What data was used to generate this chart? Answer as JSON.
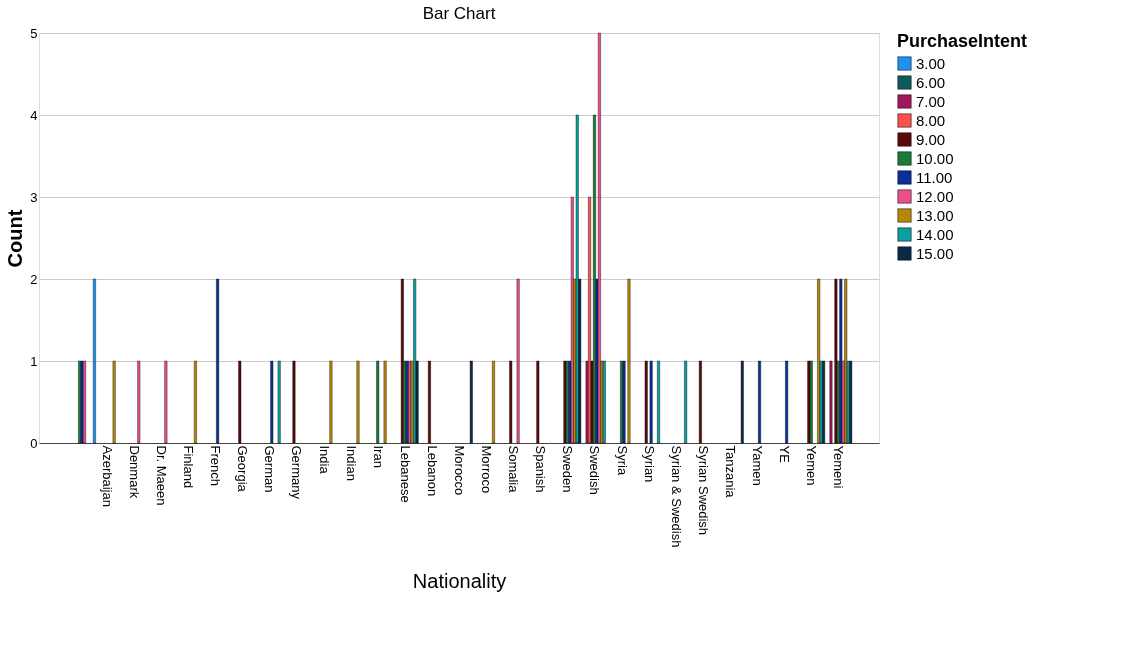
{
  "chart_data": {
    "type": "bar",
    "title": "Bar Chart",
    "xlabel": "Nationality",
    "ylabel": "Count",
    "legend_title": "PurchaseIntent",
    "categories": [
      null,
      "Azerbaijan",
      "Denmark",
      "Dr. Maeen",
      "Finland",
      "French",
      "Georgia",
      "German",
      "Germany",
      "India",
      "Indian",
      "Iran",
      "Lebanese",
      "Lebanon",
      "Morocco",
      "Morroco",
      "Somalia",
      "Spanish",
      "Sweden",
      "Swedish",
      "Syria",
      "Syrian",
      "Syrian & Swedish",
      "Syrian Swedish",
      "Tanzania",
      "Yamen",
      "YE",
      "Yemen",
      "Yemeni"
    ],
    "series": [
      {
        "name": "3.00",
        "color": "#1f8ff2",
        "values": [
          null,
          2,
          null,
          null,
          null,
          null,
          null,
          null,
          null,
          null,
          null,
          null,
          null,
          null,
          null,
          null,
          null,
          null,
          null,
          null,
          null,
          null,
          null,
          null,
          null,
          null,
          null,
          null,
          null
        ]
      },
      {
        "name": "6.00",
        "color": "#0f5a5a",
        "values": [
          null,
          null,
          null,
          null,
          null,
          null,
          null,
          null,
          null,
          null,
          null,
          null,
          null,
          null,
          null,
          null,
          null,
          null,
          null,
          null,
          null,
          null,
          null,
          null,
          null,
          null,
          null,
          null,
          null
        ]
      },
      {
        "name": "7.00",
        "color": "#a1175e",
        "values": [
          null,
          null,
          null,
          null,
          null,
          null,
          null,
          null,
          null,
          null,
          null,
          null,
          null,
          null,
          null,
          null,
          null,
          null,
          null,
          1,
          null,
          null,
          null,
          null,
          null,
          null,
          null,
          null,
          1
        ]
      },
      {
        "name": "8.00",
        "color": "#f94f4f",
        "values": [
          null,
          null,
          null,
          null,
          null,
          null,
          null,
          null,
          null,
          null,
          null,
          null,
          null,
          null,
          null,
          null,
          null,
          null,
          null,
          3,
          null,
          null,
          null,
          null,
          null,
          null,
          null,
          null,
          null
        ]
      },
      {
        "name": "9.00",
        "color": "#5a0a0a",
        "values": [
          null,
          null,
          null,
          null,
          null,
          null,
          1,
          null,
          1,
          null,
          null,
          null,
          2,
          1,
          null,
          null,
          1,
          1,
          1,
          1,
          null,
          1,
          null,
          1,
          null,
          null,
          null,
          1,
          2
        ]
      },
      {
        "name": "10.00",
        "color": "#1a7a3a",
        "values": [
          1,
          null,
          null,
          null,
          null,
          null,
          null,
          null,
          null,
          null,
          null,
          1,
          1,
          null,
          null,
          null,
          null,
          null,
          1,
          4,
          1,
          null,
          null,
          null,
          null,
          null,
          null,
          1,
          1
        ]
      },
      {
        "name": "11.00",
        "color": "#0a2f9a",
        "values": [
          1,
          null,
          null,
          null,
          null,
          2,
          null,
          1,
          null,
          null,
          null,
          null,
          1,
          null,
          null,
          null,
          null,
          null,
          1,
          2,
          1,
          1,
          null,
          null,
          null,
          1,
          1,
          null,
          2
        ]
      },
      {
        "name": "12.00",
        "color": "#e8508a",
        "values": [
          1,
          null,
          1,
          1,
          null,
          null,
          null,
          null,
          null,
          null,
          null,
          null,
          1,
          null,
          null,
          null,
          2,
          null,
          3,
          5,
          null,
          null,
          null,
          null,
          null,
          null,
          null,
          null,
          1
        ]
      },
      {
        "name": "13.00",
        "color": "#b8860b",
        "values": [
          null,
          1,
          null,
          null,
          1,
          null,
          null,
          null,
          null,
          1,
          1,
          1,
          1,
          null,
          null,
          1,
          null,
          null,
          2,
          1,
          2,
          null,
          null,
          null,
          null,
          null,
          null,
          2,
          2
        ]
      },
      {
        "name": "14.00",
        "color": "#0aa0a0",
        "values": [
          null,
          null,
          null,
          null,
          null,
          null,
          null,
          1,
          null,
          null,
          null,
          null,
          2,
          null,
          null,
          null,
          null,
          null,
          4,
          1,
          null,
          1,
          1,
          null,
          null,
          null,
          null,
          1,
          1
        ]
      },
      {
        "name": "15.00",
        "color": "#0a2a4a",
        "values": [
          null,
          null,
          null,
          null,
          null,
          null,
          null,
          null,
          null,
          null,
          null,
          null,
          1,
          null,
          1,
          null,
          null,
          null,
          2,
          null,
          null,
          null,
          null,
          null,
          1,
          null,
          null,
          1,
          1
        ]
      }
    ],
    "ylim": [
      0,
      5
    ],
    "yticks": [
      0,
      1,
      2,
      3,
      4,
      5
    ],
    "grid": "y",
    "legend": "top right"
  }
}
